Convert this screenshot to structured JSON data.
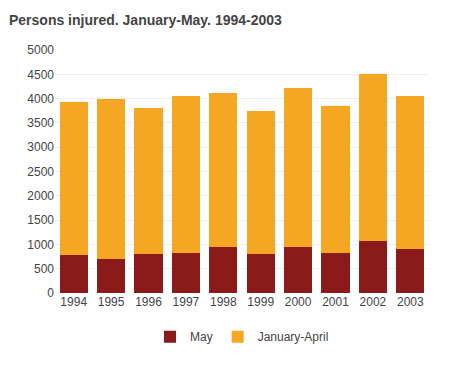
{
  "chart_data": {
    "type": "bar",
    "title": "Persons injured. January-May. 1994-2003",
    "categories": [
      "1994",
      "1995",
      "1996",
      "1997",
      "1998",
      "1999",
      "2000",
      "2001",
      "2002",
      "2003"
    ],
    "series": [
      {
        "name": "May",
        "color": "#8B1A1A",
        "values": [
          775,
          690,
          800,
          820,
          950,
          800,
          940,
          830,
          1060,
          900
        ]
      },
      {
        "name": "January-April",
        "color": "#F5A623",
        "values": [
          3150,
          3310,
          3010,
          3230,
          3160,
          2950,
          3280,
          3020,
          3440,
          3150
        ]
      }
    ],
    "stacked": true,
    "ylim": [
      0,
      5000
    ],
    "yticks": [
      0,
      500,
      1000,
      1500,
      2000,
      2500,
      3000,
      3500,
      4000,
      4500,
      5000
    ],
    "grid": true,
    "legend": "bottom"
  }
}
